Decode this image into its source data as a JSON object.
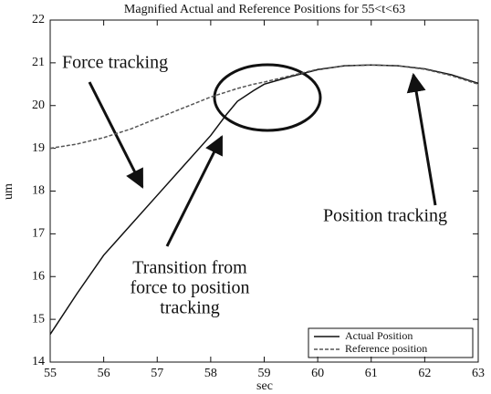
{
  "chart_data": {
    "type": "line",
    "title": "Magnified Actual and Reference Positions for 55<t<63",
    "xlabel": "sec",
    "ylabel": "um",
    "x": [
      55,
      55.5,
      56,
      56.5,
      57,
      57.5,
      58,
      58.3,
      58.5,
      58.8,
      59,
      59.5,
      60,
      60.5,
      61,
      61.5,
      62,
      62.5,
      63
    ],
    "series": [
      {
        "name": "Actual Position",
        "color": "#111111",
        "dash": false,
        "values": [
          14.65,
          15.6,
          16.5,
          17.2,
          17.9,
          18.6,
          19.3,
          19.8,
          20.1,
          20.35,
          20.5,
          20.68,
          20.84,
          20.93,
          20.95,
          20.93,
          20.86,
          20.72,
          20.52
        ]
      },
      {
        "name": "Reference position",
        "color": "#555555",
        "dash": true,
        "values": [
          19.0,
          19.1,
          19.25,
          19.45,
          19.7,
          19.95,
          20.2,
          20.32,
          20.4,
          20.5,
          20.55,
          20.7,
          20.85,
          20.93,
          20.95,
          20.93,
          20.85,
          20.7,
          20.5
        ]
      }
    ],
    "xlim": [
      55,
      63
    ],
    "xticks": [
      55,
      56,
      57,
      58,
      59,
      60,
      61,
      62,
      63
    ],
    "ylim": [
      14,
      22
    ],
    "yticks": [
      14,
      15,
      16,
      17,
      18,
      19,
      20,
      21,
      22
    ],
    "legend": "lower right",
    "annotations": [
      [
        "Force tracking"
      ],
      [
        "Transition from",
        "force to position",
        "tracking"
      ],
      [
        "Position tracking"
      ]
    ]
  }
}
